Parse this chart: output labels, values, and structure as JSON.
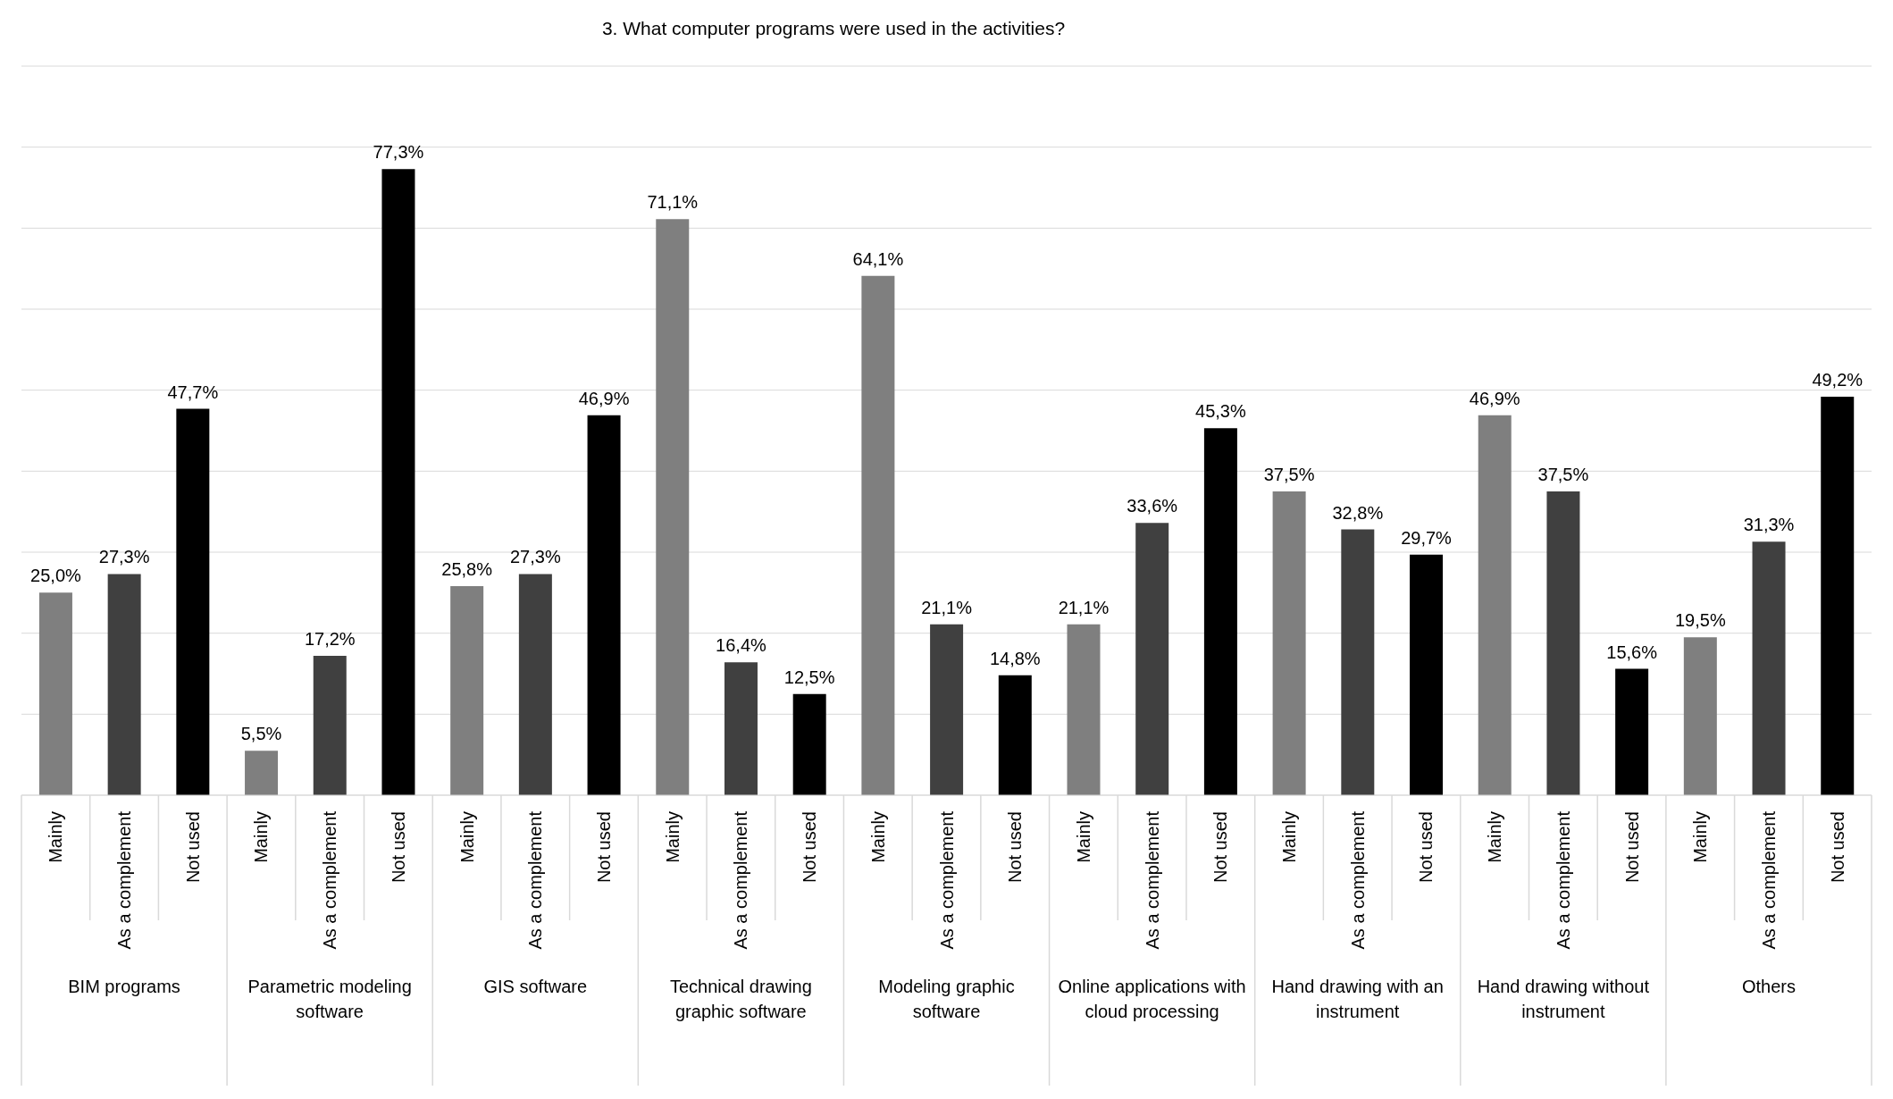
{
  "chart_data": {
    "type": "bar",
    "title": "3. What computer programs were used in the activities?",
    "categories": [
      "Mainly",
      "As a complement",
      "Not used",
      "Mainly",
      "As a complement",
      "Not used",
      "Mainly",
      "As a complement",
      "Not used",
      "Mainly",
      "As a complement",
      "Not used",
      "Mainly",
      "As a complement",
      "Not used",
      "Mainly",
      "As a complement",
      "Not used",
      "Mainly",
      "As a complement",
      "Not used",
      "Mainly",
      "As a complement",
      "Not used",
      "Mainly",
      "As a complement",
      "Not used"
    ],
    "values": [
      25.0,
      27.3,
      47.7,
      5.5,
      17.2,
      77.3,
      25.8,
      27.3,
      46.9,
      71.1,
      16.4,
      12.5,
      64.1,
      21.1,
      14.8,
      21.1,
      33.6,
      45.3,
      37.5,
      32.8,
      29.7,
      46.9,
      37.5,
      15.6,
      19.5,
      31.3,
      49.2
    ],
    "value_labels": [
      "25,0%",
      "27,3%",
      "47,7%",
      "5,5%",
      "17,2%",
      "77,3%",
      "25,8%",
      "27,3%",
      "46,9%",
      "71,1%",
      "16,4%",
      "12,5%",
      "64,1%",
      "21,1%",
      "14,8%",
      "21,1%",
      "33,6%",
      "45,3%",
      "37,5%",
      "32,8%",
      "29,7%",
      "46,9%",
      "37,5%",
      "15,6%",
      "19,5%",
      "31,3%",
      "49,2%"
    ],
    "colors": [
      "#7f7f7f",
      "#404040",
      "#000000",
      "#7f7f7f",
      "#404040",
      "#000000",
      "#7f7f7f",
      "#404040",
      "#000000",
      "#7f7f7f",
      "#404040",
      "#000000",
      "#7f7f7f",
      "#404040",
      "#000000",
      "#7f7f7f",
      "#404040",
      "#000000",
      "#7f7f7f",
      "#404040",
      "#000000",
      "#7f7f7f",
      "#404040",
      "#000000",
      "#7f7f7f",
      "#404040",
      "#000000"
    ],
    "annotations": [
      "BIM programs",
      "Parametric modeling software",
      "GIS software",
      "Technical drawing graphic software",
      "Modeling graphic software",
      "Online applications with cloud processing",
      "Hand drawing with an instrument",
      "Hand drawing without instrument",
      "Others"
    ],
    "ylim": [
      0,
      90
    ],
    "tick_labels": "x",
    "grid": "y",
    "legend": false
  }
}
